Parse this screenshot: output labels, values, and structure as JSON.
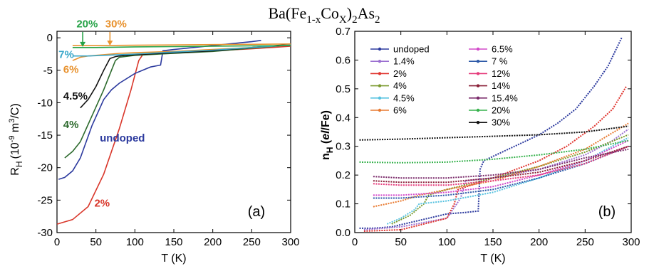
{
  "figure_title": {
    "main": "Ba(Fe",
    "sub1": "1-x",
    "mid": "Co",
    "sub2": "X",
    "close": ")",
    "sub3": "2",
    "end": "As",
    "sub4": "2"
  },
  "chart_data": [
    {
      "type": "line",
      "panel_label": "(a)",
      "xlabel": "T (K)",
      "ylabel_main": "R",
      "ylabel_sub": "H",
      "ylabel_rest": "(10",
      "ylabel_exp1": "-9",
      "ylabel_units": " m",
      "ylabel_exp2": "3",
      "ylabel_tail": "/C)",
      "xlim": [
        0,
        300
      ],
      "ylim": [
        -30,
        1
      ],
      "xticks": [
        0,
        50,
        100,
        150,
        200,
        250,
        300
      ],
      "yticks": [
        0,
        -5,
        -10,
        -15,
        -20,
        -25,
        -30
      ],
      "grid": false,
      "series": [
        {
          "name": "2%",
          "color": "#d9372b",
          "x": [
            0,
            20,
            40,
            60,
            80,
            95,
            105,
            110,
            120,
            150,
            200,
            250,
            300
          ],
          "y": [
            -28.7,
            -28.0,
            -26.0,
            -21.0,
            -14.0,
            -8.0,
            -3.5,
            -2.6,
            -2.5,
            -2.3,
            -2.0,
            -1.7,
            -1.3
          ]
        },
        {
          "name": "undoped",
          "color": "#2c3a9e",
          "x": [
            2,
            10,
            20,
            30,
            45,
            60,
            70,
            80,
            100,
            120,
            133,
            136,
            150,
            200,
            250,
            262
          ],
          "y": [
            -21.8,
            -21.5,
            -20.5,
            -18.5,
            -13.5,
            -9.5,
            -8.0,
            -7.0,
            -5.5,
            -4.5,
            -4.2,
            -2.0,
            -1.8,
            -1.2,
            -0.6,
            -0.4
          ]
        },
        {
          "name": "4%",
          "color": "#2e6b2e",
          "x": [
            10,
            20,
            30,
            45,
            60,
            70,
            75,
            80,
            100,
            150,
            200,
            250,
            300
          ],
          "y": [
            -18.5,
            -17.5,
            -16.0,
            -12.0,
            -8.0,
            -5.0,
            -3.5,
            -3.0,
            -2.7,
            -2.4,
            -2.1,
            -1.6,
            -1.1
          ]
        },
        {
          "name": "4.5%",
          "color": "#111111",
          "x": [
            30,
            40,
            50,
            60,
            68,
            75,
            80,
            100,
            150,
            200,
            250,
            300
          ],
          "y": [
            -10.8,
            -9.5,
            -7.5,
            -5.0,
            -3.2,
            -2.9,
            -2.8,
            -2.6,
            -2.3,
            -2.0,
            -1.5,
            -1.0
          ]
        },
        {
          "name": "6%",
          "color": "#e8922e",
          "x": [
            20,
            30,
            40,
            50,
            60,
            80,
            100,
            150,
            200,
            250,
            300
          ],
          "y": [
            -3.5,
            -3.0,
            -2.8,
            -2.7,
            -2.6,
            -2.4,
            -2.3,
            -2.1,
            -1.8,
            -1.5,
            -1.1
          ]
        },
        {
          "name": "7%",
          "color": "#3aa7c9",
          "x": [
            20,
            40,
            60,
            80,
            100,
            150,
            200,
            250,
            300
          ],
          "y": [
            -2.8,
            -2.8,
            -2.7,
            -2.6,
            -2.5,
            -2.2,
            -1.9,
            -1.5,
            -1.1
          ]
        },
        {
          "name": "20%",
          "color": "#27a348",
          "x": [
            20,
            50,
            100,
            150,
            200,
            250,
            300
          ],
          "y": [
            -1.5,
            -1.5,
            -1.4,
            -1.35,
            -1.3,
            -1.25,
            -1.2
          ]
        },
        {
          "name": "30%",
          "color": "#e8922e",
          "x": [
            20,
            50,
            100,
            150,
            200,
            250,
            300
          ],
          "y": [
            -1.2,
            -1.2,
            -1.15,
            -1.1,
            -1.05,
            -1.0,
            -0.95
          ]
        }
      ],
      "annotations": [
        {
          "text": "20%",
          "color": "#27a348",
          "x": 25,
          "y": 1.6,
          "arrow_to": [
            33,
            -1.4
          ]
        },
        {
          "text": "30%",
          "color": "#e8922e",
          "x": 62,
          "y": 1.6,
          "arrow_to": [
            68,
            -1.2
          ]
        },
        {
          "text": "7%",
          "color": "#3aa7c9",
          "x": 2,
          "y": -3.1
        },
        {
          "text": "6%",
          "color": "#e8922e",
          "x": 8,
          "y": -5.4
        },
        {
          "text": "4.5%",
          "color": "#111111",
          "x": 8,
          "y": -9.5
        },
        {
          "text": "4%",
          "color": "#2e6b2e",
          "x": 8,
          "y": -13.9
        },
        {
          "text": "undoped",
          "color": "#2c3a9e",
          "x": 55,
          "y": -16.0
        },
        {
          "text": "2%",
          "color": "#d9372b",
          "x": 48,
          "y": -26.0
        }
      ]
    },
    {
      "type": "line",
      "panel_label": "(b)",
      "xlabel": "T (K)",
      "ylabel_main": "n",
      "ylabel_sub": "H",
      "ylabel_rest": " (",
      "ylabel_italic": "el",
      "ylabel_tail": "/Fe)",
      "xlim": [
        0,
        300
      ],
      "ylim": [
        0,
        0.7
      ],
      "xticks": [
        0,
        50,
        100,
        150,
        200,
        250,
        300
      ],
      "yticks": [
        0.0,
        0.1,
        0.2,
        0.3,
        0.4,
        0.5,
        0.6,
        0.7
      ],
      "grid": false,
      "legend_position": "top-left",
      "series": [
        {
          "name": "undoped",
          "color": "#2c3a9e",
          "x": [
            5,
            20,
            40,
            60,
            80,
            100,
            120,
            134,
            136,
            140,
            160,
            180,
            200,
            220,
            240,
            260,
            275,
            290
          ],
          "y": [
            0.015,
            0.015,
            0.02,
            0.035,
            0.05,
            0.065,
            0.07,
            0.075,
            0.22,
            0.25,
            0.28,
            0.31,
            0.34,
            0.38,
            0.43,
            0.51,
            0.58,
            0.68
          ]
        },
        {
          "name": "1.4%",
          "color": "#9b6fd0",
          "x": [
            10,
            50,
            100,
            115,
            120,
            150,
            200,
            250,
            280,
            297
          ],
          "y": [
            0.01,
            0.02,
            0.05,
            0.12,
            0.18,
            0.19,
            0.22,
            0.27,
            0.32,
            0.36
          ]
        },
        {
          "name": "2%",
          "color": "#e0342e",
          "x": [
            10,
            50,
            100,
            108,
            112,
            150,
            200,
            230,
            260,
            280,
            295
          ],
          "y": [
            0.005,
            0.01,
            0.05,
            0.1,
            0.15,
            0.19,
            0.25,
            0.3,
            0.37,
            0.43,
            0.51
          ]
        },
        {
          "name": "4%",
          "color": "#7a9a2e",
          "x": [
            40,
            60,
            75,
            80,
            100,
            150,
            200,
            250,
            297
          ],
          "y": [
            0.03,
            0.06,
            0.1,
            0.13,
            0.15,
            0.19,
            0.23,
            0.28,
            0.34
          ]
        },
        {
          "name": "4.5%",
          "color": "#56c2e0",
          "x": [
            35,
            50,
            65,
            70,
            100,
            150,
            200,
            250,
            297
          ],
          "y": [
            0.03,
            0.05,
            0.08,
            0.1,
            0.11,
            0.14,
            0.19,
            0.25,
            0.33
          ]
        },
        {
          "name": "6%",
          "color": "#e87a30",
          "x": [
            20,
            35,
            50,
            60,
            70,
            100,
            150,
            200,
            250,
            297
          ],
          "y": [
            0.09,
            0.1,
            0.11,
            0.12,
            0.13,
            0.15,
            0.18,
            0.23,
            0.29,
            0.38
          ]
        },
        {
          "name": "6.5%",
          "color": "#d248c9",
          "x": [
            20,
            50,
            100,
            150,
            200,
            250,
            297
          ],
          "y": [
            0.13,
            0.13,
            0.14,
            0.16,
            0.2,
            0.25,
            0.32
          ]
        },
        {
          "name": "7 %",
          "color": "#2e5aa8",
          "x": [
            20,
            50,
            100,
            150,
            200,
            250,
            297
          ],
          "y": [
            0.12,
            0.12,
            0.13,
            0.15,
            0.19,
            0.24,
            0.3
          ]
        },
        {
          "name": "12%",
          "color": "#e53a7a",
          "x": [
            20,
            50,
            100,
            150,
            200,
            250,
            297
          ],
          "y": [
            0.17,
            0.165,
            0.165,
            0.18,
            0.2,
            0.24,
            0.3
          ]
        },
        {
          "name": "14%",
          "color": "#8a2038",
          "x": [
            20,
            50,
            100,
            150,
            200,
            250,
            297
          ],
          "y": [
            0.18,
            0.175,
            0.175,
            0.19,
            0.21,
            0.25,
            0.3
          ]
        },
        {
          "name": "15.4%",
          "color": "#7a2a6a",
          "x": [
            20,
            50,
            100,
            150,
            200,
            250,
            297
          ],
          "y": [
            0.195,
            0.19,
            0.19,
            0.2,
            0.22,
            0.26,
            0.29
          ]
        },
        {
          "name": "20%",
          "color": "#37b24d",
          "x": [
            5,
            50,
            100,
            150,
            200,
            250,
            297
          ],
          "y": [
            0.245,
            0.243,
            0.245,
            0.255,
            0.27,
            0.29,
            0.32
          ]
        },
        {
          "name": "30%",
          "color": "#111111",
          "x": [
            5,
            50,
            100,
            150,
            200,
            250,
            297
          ],
          "y": [
            0.322,
            0.325,
            0.33,
            0.335,
            0.34,
            0.35,
            0.37
          ]
        }
      ]
    }
  ]
}
